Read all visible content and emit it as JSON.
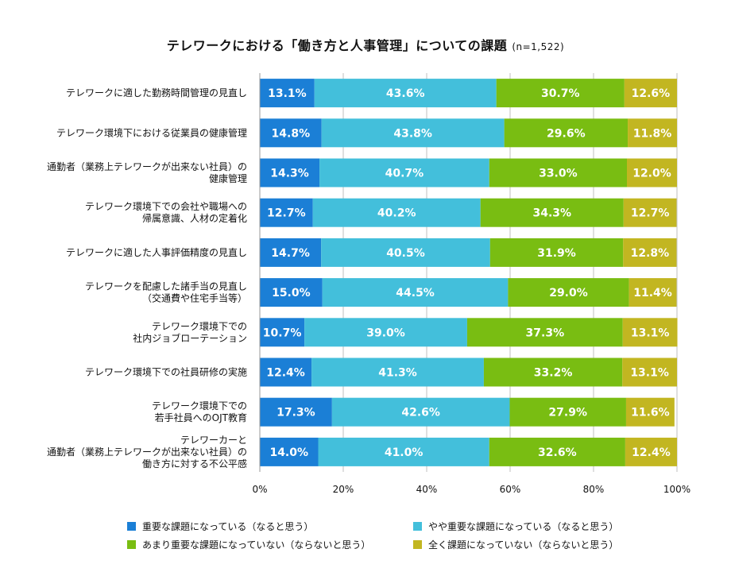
{
  "title": "テレワークにおける「働き方と人事管理」についての課題",
  "title_note": "(n=1,522)",
  "chart_data": {
    "type": "bar",
    "orientation": "horizontal",
    "stacked": true,
    "percent": true,
    "title": "テレワークにおける「働き方と人事管理」についての課題",
    "xlim": [
      0,
      100
    ],
    "x_ticks": [
      "0%",
      "20%",
      "40%",
      "60%",
      "80%",
      "100%"
    ],
    "grid": true,
    "legend_position": "bottom",
    "categories": [
      [
        "テレワークに適した勤務時間管理の見直し"
      ],
      [
        "テレワーク環境下における従業員の健康管理"
      ],
      [
        "通勤者（業務上テレワークが出来ない社員）の",
        "健康管理"
      ],
      [
        "テレワーク環境下での会社や職場への",
        "帰属意識、人材の定着化"
      ],
      [
        "テレワークに適した人事評価精度の見直し"
      ],
      [
        "テレワークを配慮した諸手当の見直し",
        "（交通費や住宅手当等）"
      ],
      [
        "テレワーク環境下での",
        "社内ジョブローテーション"
      ],
      [
        "テレワーク環境下での社員研修の実施"
      ],
      [
        "テレワーク環境下での",
        "若手社員へのOJT教育"
      ],
      [
        "テレワーカーと",
        "通勤者（業務上テレワークが出来ない社員）の",
        "働き方に対する不公平感"
      ]
    ],
    "series": [
      {
        "name": "重要な課題になっている（なると思う）",
        "color": "#1b7fd6",
        "values": [
          13.1,
          14.8,
          14.3,
          12.7,
          14.7,
          15.0,
          10.7,
          12.4,
          17.3,
          14.0
        ]
      },
      {
        "name": "やや重要な課題になっている（なると思う）",
        "color": "#43bfdb",
        "values": [
          43.6,
          43.8,
          40.7,
          40.2,
          40.5,
          44.5,
          39.0,
          41.3,
          42.6,
          41.0
        ]
      },
      {
        "name": "あまり重要な課題になっていない（ならないと思う）",
        "color": "#79bd12",
        "values": [
          30.7,
          29.6,
          33.0,
          34.3,
          31.9,
          29.0,
          37.3,
          33.2,
          27.9,
          32.6
        ]
      },
      {
        "name": "全く課題になっていない（ならないと思う）",
        "color": "#c2b621",
        "values": [
          12.6,
          11.8,
          12.0,
          12.7,
          12.8,
          11.4,
          13.1,
          13.1,
          11.6,
          12.4
        ]
      }
    ]
  }
}
